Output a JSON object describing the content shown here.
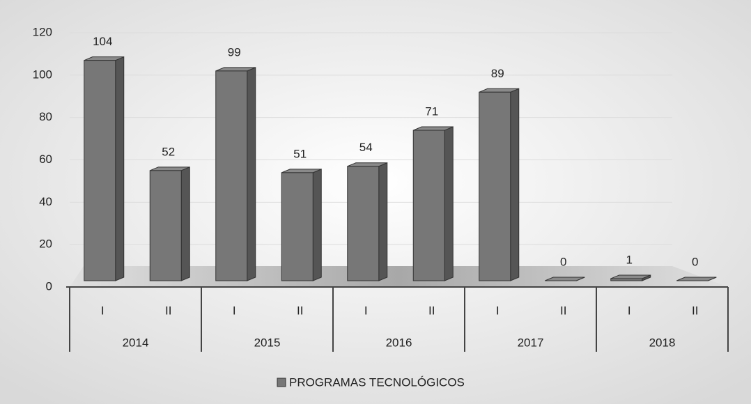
{
  "chart_data": {
    "type": "bar3d",
    "categories": [
      "I",
      "II",
      "I",
      "II",
      "I",
      "II",
      "I",
      "II",
      "I",
      "II"
    ],
    "groups": [
      "2014",
      "2015",
      "2016",
      "2017",
      "2018"
    ],
    "series": [
      {
        "name": "PROGRAMAS TECNOLÓGICOS",
        "color": "#777777",
        "values": [
          104,
          52,
          99,
          51,
          54,
          71,
          89,
          0,
          1,
          0
        ]
      }
    ],
    "ylim": [
      0,
      120
    ],
    "yticks": [
      0,
      20,
      40,
      60,
      80,
      100,
      120
    ],
    "grid": true,
    "legend": "bottom"
  }
}
